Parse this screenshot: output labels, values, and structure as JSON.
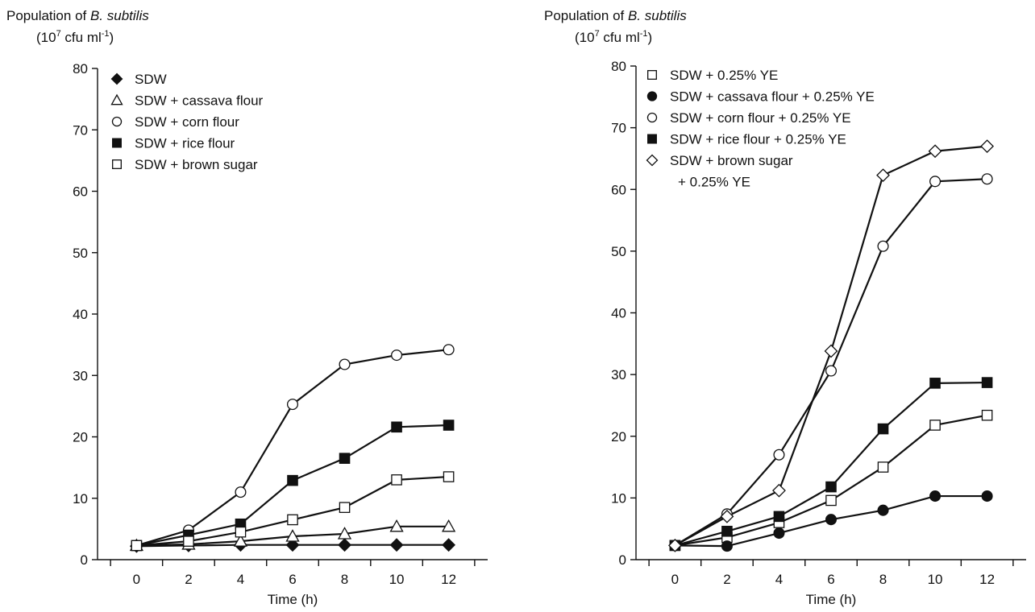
{
  "chart_data": [
    {
      "type": "line",
      "ytitle_prefix": "Population of ",
      "ytitle_organism": "B. subtilis",
      "yunit_base": "(10",
      "yunit_exp": "7",
      "yunit_mid": " cfu ml",
      "yunit_exp2": "-1",
      "yunit_end": ")",
      "xlabel": "Time (h)",
      "x": [
        0,
        2,
        4,
        6,
        8,
        10,
        12
      ],
      "xlim": [
        -1.5,
        13.5
      ],
      "ylim": [
        0,
        80
      ],
      "yticks": [
        0,
        10,
        20,
        30,
        40,
        50,
        60,
        70,
        80
      ],
      "legend_position": "top-left",
      "series": [
        {
          "name": "SDW",
          "marker": "diamond-filled",
          "values": [
            2.2,
            2.3,
            2.4,
            2.4,
            2.4,
            2.4,
            2.4
          ]
        },
        {
          "name": "SDW + cassava flour",
          "marker": "triangle-open",
          "values": [
            2.3,
            2.5,
            3.0,
            3.8,
            4.2,
            5.4,
            5.4
          ]
        },
        {
          "name": "SDW + corn flour",
          "marker": "circle-open",
          "values": [
            2.3,
            4.8,
            11.0,
            25.3,
            31.8,
            33.3,
            34.2
          ]
        },
        {
          "name": "SDW + rice flour",
          "marker": "square-filled",
          "values": [
            2.3,
            4.0,
            5.8,
            12.9,
            16.5,
            21.6,
            21.9
          ]
        },
        {
          "name": "SDW + brown sugar",
          "marker": "square-open",
          "values": [
            2.3,
            3.0,
            4.5,
            6.5,
            8.5,
            13.0,
            13.5
          ]
        }
      ]
    },
    {
      "type": "line",
      "ytitle_prefix": "Population of ",
      "ytitle_organism": "B. subtilis",
      "yunit_base": "(10",
      "yunit_exp": "7",
      "yunit_mid": " cfu ml",
      "yunit_exp2": "-1",
      "yunit_end": ")",
      "xlabel": "Time (h)",
      "x": [
        0,
        2,
        4,
        6,
        8,
        10,
        12
      ],
      "xlim": [
        -1.5,
        13.5
      ],
      "ylim": [
        0,
        80
      ],
      "yticks": [
        0,
        10,
        20,
        30,
        40,
        50,
        60,
        70,
        80
      ],
      "legend_position": "top-left",
      "series": [
        {
          "name": "SDW + 0.25% YE",
          "marker": "square-open",
          "values": [
            2.3,
            3.6,
            6.0,
            9.6,
            15.0,
            21.8,
            23.4
          ]
        },
        {
          "name": "SDW + cassava flour + 0.25% YE",
          "marker": "circle-filled",
          "values": [
            2.3,
            2.2,
            4.3,
            6.5,
            8.0,
            10.3,
            10.3
          ]
        },
        {
          "name": "SDW + corn flour + 0.25% YE",
          "marker": "circle-open",
          "values": [
            2.3,
            7.4,
            17.0,
            30.6,
            50.8,
            61.3,
            61.7
          ]
        },
        {
          "name": "SDW + rice flour + 0.25% YE",
          "marker": "square-filled",
          "values": [
            2.3,
            4.6,
            7.0,
            11.8,
            21.2,
            28.6,
            28.7
          ]
        },
        {
          "name": "SDW + brown sugar",
          "name_line2": "+ 0.25% YE",
          "marker": "diamond-open",
          "values": [
            2.3,
            7.0,
            11.2,
            33.8,
            62.3,
            66.2,
            67.0
          ]
        }
      ]
    }
  ]
}
